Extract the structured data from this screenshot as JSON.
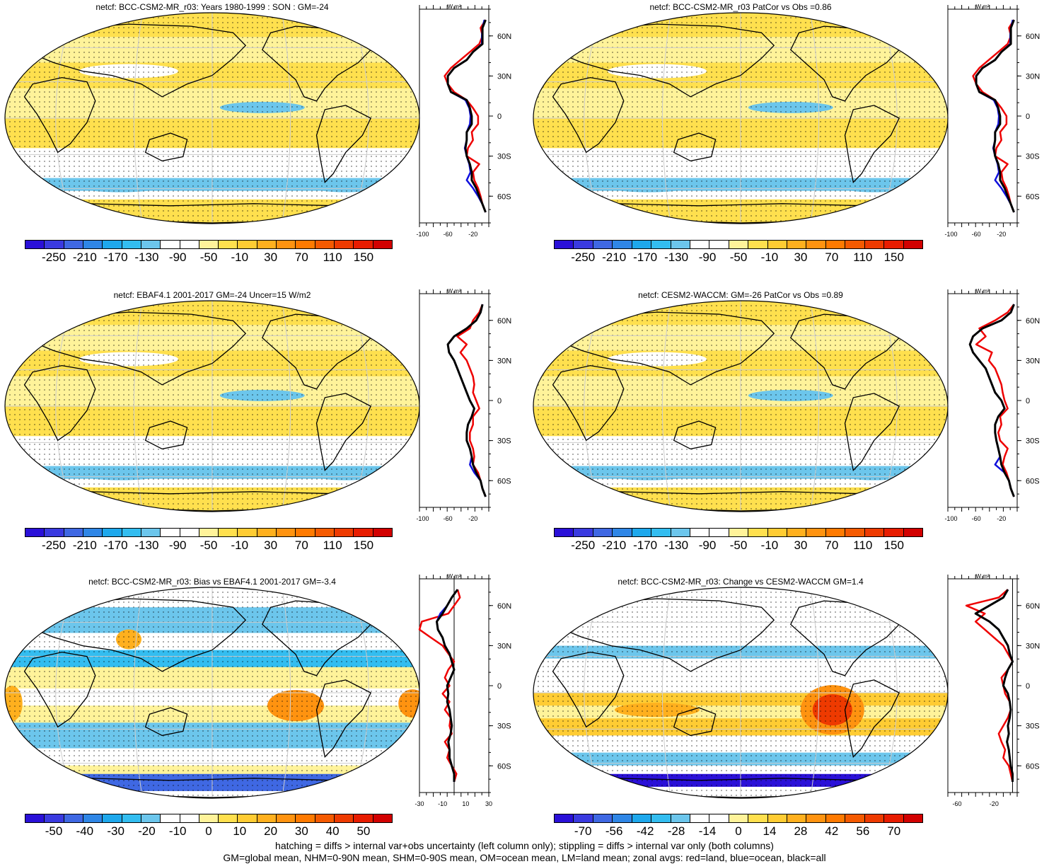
{
  "panels": [
    {
      "id": "p1",
      "title": "netcf: BCC-CSM2-MR_r03: Years 1980-1999 : SON : GM=-24",
      "scale": "abs",
      "zonal_ticks": [
        "-100",
        "-60",
        "-20"
      ]
    },
    {
      "id": "p2",
      "title": "netcf: BCC-CSM2-MR_r03 PatCor vs Obs =0.86",
      "scale": "abs",
      "zonal_ticks": [
        "-100",
        "-60",
        "-20"
      ]
    },
    {
      "id": "p3",
      "title": "netcf: EBAF4.1 2001-2017 GM=-24 Uncer=15 W/m2",
      "scale": "abs",
      "zonal_ticks": [
        "-100",
        "-60",
        "-20"
      ]
    },
    {
      "id": "p4",
      "title": "netcf: CESM2-WACCM: GM=-26 PatCor vs Obs =0.89",
      "scale": "abs",
      "zonal_ticks": [
        "-100",
        "-60",
        "-20"
      ]
    },
    {
      "id": "p5",
      "title": "netcf: BCC-CSM2-MR_r03: Bias vs EBAF4.1 2001-2017  GM=-3.4",
      "scale": "bias",
      "zonal_ticks": [
        "-30",
        "-10",
        "10",
        "30"
      ]
    },
    {
      "id": "p6",
      "title": "netcf: BCC-CSM2-MR_r03: Change vs CESM2-WACCM GM=1.4",
      "scale": "chg",
      "zonal_ticks": [
        "-60",
        "-20"
      ]
    }
  ],
  "zonal_units": "W m²",
  "lat_labels": [
    "60N",
    "30N",
    "0",
    "30S",
    "60S"
  ],
  "colorbars": {
    "abs": {
      "labels": [
        "-250",
        "-210",
        "-170",
        "-130",
        "-90",
        "-50",
        "-10",
        "30",
        "70",
        "110",
        "150"
      ],
      "colors": [
        "#2a10d8",
        "#3a3ae0",
        "#3f68e3",
        "#2f86e6",
        "#1ea8ec",
        "#33bdf0",
        "#6cc6ec",
        "#ffffff",
        "#ffffff",
        "#fff39a",
        "#ffe04e",
        "#ffcc33",
        "#ffb01e",
        "#ff9310",
        "#ff7a00",
        "#f55a00",
        "#ee3a00",
        "#e81c00",
        "#d20000"
      ]
    },
    "bias": {
      "labels": [
        "-50",
        "-40",
        "-30",
        "-20",
        "-10",
        "0",
        "10",
        "20",
        "30",
        "40",
        "50"
      ],
      "colors": [
        "#2a10d8",
        "#3a3ae0",
        "#3f68e3",
        "#2f86e6",
        "#1ea8ec",
        "#33bdf0",
        "#6cc6ec",
        "#ffffff",
        "#ffffff",
        "#fff39a",
        "#ffe04e",
        "#ffcc33",
        "#ffb01e",
        "#ff9310",
        "#ff7a00",
        "#f55a00",
        "#ee3a00",
        "#e81c00",
        "#d20000"
      ]
    },
    "chg": {
      "labels": [
        "-70",
        "-56",
        "-42",
        "-28",
        "-14",
        "0",
        "14",
        "28",
        "42",
        "56",
        "70"
      ],
      "colors": [
        "#2a10d8",
        "#3a3ae0",
        "#3f68e3",
        "#2f86e6",
        "#1ea8ec",
        "#33bdf0",
        "#6cc6ec",
        "#ffffff",
        "#ffffff",
        "#fff39a",
        "#ffe04e",
        "#ffcc33",
        "#ffb01e",
        "#ff9310",
        "#ff7a00",
        "#f55a00",
        "#ee3a00",
        "#e81c00",
        "#d20000"
      ]
    }
  },
  "footer": {
    "line1": "hatching = diffs > internal var+obs uncertainty (left column only); stippling = diffs > internal var only (both columns)",
    "line2": "GM=global mean, NHM=0-90N mean, SHM=0-90S mean, OM=ocean mean, LM=land mean; zonal avgs: red=land, blue=ocean, black=all"
  },
  "zonal_profiles": {
    "p1": {
      "all": [
        0,
        -5,
        -5,
        -5,
        -20,
        -30,
        -50,
        -60,
        -60,
        -55,
        -30,
        -25,
        -22,
        -22,
        -30,
        -30,
        -32,
        -30,
        -25,
        -22,
        -22,
        -15,
        -10,
        -5,
        0
      ],
      "land": [
        0,
        -8,
        -5,
        -10,
        -25,
        -40,
        -55,
        -65,
        -60,
        -50,
        -30,
        -20,
        -12,
        -12,
        -22,
        -20,
        -28,
        -30,
        -10,
        -20,
        -18,
        -12,
        -8,
        -5,
        0
      ],
      "ocean": [
        -2,
        -5,
        -6,
        -6,
        -20,
        -30,
        -50,
        -60,
        -60,
        -55,
        -32,
        -26,
        -24,
        -25,
        -30,
        -30,
        -33,
        -30,
        -26,
        -24,
        -30,
        -20,
        -12,
        -5,
        0
      ]
    },
    "p2": {
      "all": [
        0,
        -5,
        -5,
        -5,
        -20,
        -30,
        -50,
        -60,
        -60,
        -55,
        -30,
        -25,
        -22,
        -22,
        -30,
        -30,
        -32,
        -30,
        -25,
        -22,
        -22,
        -15,
        -10,
        -5,
        0
      ],
      "land": [
        0,
        -8,
        -5,
        -10,
        -25,
        -40,
        -55,
        -65,
        -60,
        -50,
        -30,
        -20,
        -12,
        -12,
        -22,
        -20,
        -28,
        -30,
        -10,
        -20,
        -18,
        -12,
        -8,
        -5,
        0
      ],
      "ocean": [
        -2,
        -5,
        -6,
        -6,
        -20,
        -30,
        -50,
        -60,
        -60,
        -55,
        -32,
        -26,
        -24,
        -25,
        -30,
        -30,
        -33,
        -30,
        -26,
        -24,
        -30,
        -20,
        -12,
        -5,
        0
      ]
    },
    "p3": {
      "all": [
        -5,
        -8,
        -15,
        -30,
        -50,
        -60,
        -58,
        -50,
        -45,
        -40,
        -35,
        -30,
        -25,
        -18,
        -22,
        -28,
        -30,
        -30,
        -25,
        -22,
        -20,
        -15,
        -8,
        -5,
        0
      ],
      "land": [
        -5,
        -10,
        -20,
        -25,
        -45,
        -30,
        -40,
        -30,
        -25,
        -20,
        -18,
        -20,
        -15,
        -10,
        -20,
        -20,
        -25,
        -25,
        -20,
        -18,
        -20,
        -12,
        -8,
        -5,
        0
      ],
      "ocean": [
        -5,
        -8,
        -15,
        -30,
        -50,
        -60,
        -58,
        -50,
        -45,
        -40,
        -35,
        -30,
        -25,
        -18,
        -22,
        -28,
        -30,
        -30,
        -25,
        -22,
        -25,
        -18,
        -8,
        -5,
        0
      ]
    },
    "p4": {
      "all": [
        0,
        -5,
        -20,
        -50,
        -65,
        -70,
        -65,
        -55,
        -45,
        -40,
        -35,
        -30,
        -20,
        -15,
        -25,
        -30,
        -30,
        -28,
        -25,
        -22,
        -20,
        -15,
        -8,
        -5,
        0
      ],
      "land": [
        0,
        -10,
        -30,
        -55,
        -45,
        -60,
        -35,
        -40,
        -30,
        -25,
        -20,
        -18,
        -15,
        -10,
        -22,
        -20,
        -25,
        -22,
        -10,
        -15,
        -18,
        -12,
        -8,
        -5,
        0
      ],
      "ocean": [
        0,
        -5,
        -20,
        -50,
        -65,
        -70,
        -65,
        -55,
        -45,
        -40,
        -35,
        -30,
        -20,
        -15,
        -25,
        -30,
        -30,
        -28,
        -25,
        -22,
        -30,
        -15,
        -8,
        -5,
        0
      ]
    },
    "p5": {
      "all": [
        3,
        -2,
        -6,
        -10,
        -15,
        -14,
        -10,
        -8,
        -4,
        -2,
        0,
        -3,
        -6,
        -5,
        -6,
        -4,
        -3,
        -2,
        -3,
        -5,
        -4,
        -4,
        -2,
        0,
        0
      ],
      "land": [
        3,
        5,
        0,
        -5,
        -28,
        -30,
        -20,
        -10,
        -5,
        0,
        -5,
        -8,
        -4,
        -10,
        -4,
        -8,
        -3,
        -4,
        -2,
        -8,
        -4,
        -6,
        -2,
        2,
        0
      ],
      "ocean": [
        3,
        -2,
        -6,
        -12,
        -15,
        -14,
        -10,
        -8,
        -4,
        -2,
        0,
        -3,
        -6,
        -5,
        -6,
        -4,
        -3,
        -2,
        -3,
        -5,
        -4,
        -4,
        -2,
        0,
        0
      ]
    },
    "p6": {
      "all": [
        -5,
        -10,
        -25,
        -40,
        -25,
        -15,
        -10,
        -5,
        -3,
        0,
        -5,
        -8,
        -10,
        -5,
        -3,
        -2,
        -3,
        -5,
        -4,
        -6,
        -4,
        -3,
        -2,
        0,
        0
      ],
      "land": [
        -5,
        -15,
        -50,
        -30,
        -40,
        -30,
        -20,
        -10,
        -5,
        0,
        -5,
        -12,
        -10,
        -8,
        -3,
        -2,
        -5,
        -10,
        -15,
        -12,
        -8,
        -10,
        -4,
        -2,
        0
      ],
      "ocean": [
        -5,
        -10,
        -25,
        -40,
        -25,
        -15,
        -10,
        -5,
        -3,
        0,
        -5,
        -8,
        -10,
        -5,
        -3,
        -2,
        -3,
        -5,
        -4,
        -6,
        -4,
        -3,
        -2,
        0,
        0
      ]
    }
  }
}
